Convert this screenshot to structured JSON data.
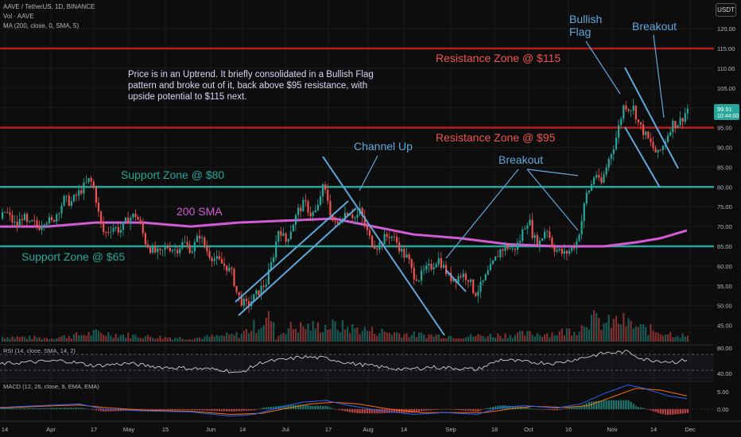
{
  "header": {
    "symbol_line": "AAVE / TetherUS, 1D, BINANCE",
    "vol_line": "Vol · AAVE",
    "ma_line": "MA (200, close, 0, SMA, 5)",
    "currency": "USDT"
  },
  "rsi_label": "RSI (14, close, SMA, 14, 2)",
  "macd_label": "MACD (12, 26, close, 9, EMA, EMA)",
  "price_badge": {
    "price": "99.91",
    "countdown": "10:44:00"
  },
  "annotations": {
    "note_line1": "Price is in an Uptrend. It briefly consolidated in a Bullish Flag",
    "note_line2": "pattern and broke out of it, back above $95 resistance, with",
    "note_line3": "upside potential to $115 next.",
    "resistance_115": "Resistance Zone @ $115",
    "resistance_95": "Resistance Zone @ $95",
    "support_80": "Support Zone @ $80",
    "support_65": "Support Zone @ $65",
    "sma_label": "200 SMA",
    "channel_up": "Channel Up",
    "breakout_1": "Breakout",
    "breakout_2": "Breakout",
    "bullish_flag_1": "Bullish",
    "bullish_flag_2": "Flag"
  },
  "colors": {
    "bull": "#26a69a",
    "bear": "#ef5350",
    "resistance": "#b71c1c",
    "support": "#26a69a",
    "sma": "#d35bd6",
    "trendline": "#5fa8dd",
    "macd": "#2962ff",
    "signal": "#ff6d00",
    "rsi": "#cfcfcf"
  },
  "chart_data": {
    "type": "candlestick",
    "symbol": "AAVE / TetherUS",
    "interval": "1D",
    "ylim": [
      40,
      125
    ],
    "y_ticks": [
      "120.00",
      "115.00",
      "110.00",
      "105.00",
      "100.00",
      "95.00",
      "90.00",
      "85.00",
      "80.00",
      "75.00",
      "70.00",
      "65.00",
      "60.00",
      "55.00",
      "50.00",
      "45.00"
    ],
    "x_ticks": [
      "14",
      "Apr",
      "17",
      "May",
      "15",
      "Jun",
      "14",
      "Jul",
      "17",
      "Aug",
      "14",
      "Sep",
      "18",
      "Oct",
      "16",
      "Nov",
      "14",
      "Dec"
    ],
    "levels": [
      {
        "label": "Resistance Zone @ $115",
        "value": 115
      },
      {
        "label": "Resistance Zone @ $95",
        "value": 95
      },
      {
        "label": "Support Zone @ $80",
        "value": 80
      },
      {
        "label": "Support Zone @ $65",
        "value": 65
      }
    ],
    "last_price": 99.91,
    "close_path": [
      [
        0,
        72
      ],
      [
        6,
        74
      ],
      [
        12,
        72
      ],
      [
        20,
        70
      ],
      [
        28,
        73
      ],
      [
        34,
        70
      ],
      [
        40,
        71
      ],
      [
        48,
        70
      ],
      [
        56,
        72
      ],
      [
        64,
        71
      ],
      [
        72,
        74
      ],
      [
        80,
        77
      ],
      [
        88,
        76
      ],
      [
        96,
        78
      ],
      [
        104,
        80
      ],
      [
        112,
        82
      ],
      [
        118,
        79
      ],
      [
        124,
        72
      ],
      [
        130,
        68
      ],
      [
        140,
        70
      ],
      [
        150,
        69
      ],
      [
        160,
        72
      ],
      [
        170,
        73
      ],
      [
        176,
        70
      ],
      [
        182,
        66
      ],
      [
        190,
        64
      ],
      [
        200,
        63
      ],
      [
        210,
        65
      ],
      [
        220,
        64
      ],
      [
        230,
        66
      ],
      [
        240,
        64
      ],
      [
        250,
        68
      ],
      [
        256,
        65
      ],
      [
        262,
        63
      ],
      [
        268,
        62
      ],
      [
        275,
        61
      ],
      [
        283,
        60
      ],
      [
        291,
        58
      ],
      [
        297,
        53
      ],
      [
        303,
        51
      ],
      [
        310,
        50
      ],
      [
        318,
        52
      ],
      [
        326,
        54
      ],
      [
        334,
        56
      ],
      [
        342,
        62
      ],
      [
        350,
        70
      ],
      [
        358,
        66
      ],
      [
        366,
        70
      ],
      [
        374,
        74
      ],
      [
        382,
        76
      ],
      [
        390,
        73
      ],
      [
        398,
        74
      ],
      [
        404,
        80
      ],
      [
        410,
        78
      ],
      [
        416,
        72
      ],
      [
        422,
        70
      ],
      [
        430,
        73
      ],
      [
        438,
        74
      ],
      [
        446,
        72
      ],
      [
        452,
        74
      ],
      [
        458,
        70
      ],
      [
        466,
        66
      ],
      [
        474,
        65
      ],
      [
        482,
        67
      ],
      [
        490,
        68
      ],
      [
        498,
        66
      ],
      [
        506,
        63
      ],
      [
        512,
        62
      ],
      [
        518,
        58
      ],
      [
        526,
        57
      ],
      [
        534,
        59
      ],
      [
        542,
        60
      ],
      [
        550,
        62
      ],
      [
        556,
        60
      ],
      [
        564,
        57
      ],
      [
        572,
        57
      ],
      [
        580,
        58
      ],
      [
        588,
        57
      ],
      [
        596,
        53
      ],
      [
        604,
        55
      ],
      [
        612,
        58
      ],
      [
        620,
        61
      ],
      [
        628,
        64
      ],
      [
        636,
        65
      ],
      [
        644,
        64
      ],
      [
        652,
        66
      ],
      [
        658,
        70
      ],
      [
        664,
        72
      ],
      [
        670,
        67
      ],
      [
        678,
        66
      ],
      [
        686,
        70
      ],
      [
        694,
        65
      ],
      [
        700,
        64
      ],
      [
        708,
        63
      ],
      [
        716,
        64
      ],
      [
        724,
        66
      ],
      [
        730,
        71
      ],
      [
        736,
        78
      ],
      [
        742,
        80
      ],
      [
        748,
        84
      ],
      [
        754,
        80
      ],
      [
        760,
        84
      ],
      [
        766,
        88
      ],
      [
        772,
        91
      ],
      [
        778,
        96
      ],
      [
        784,
        101
      ],
      [
        790,
        100
      ],
      [
        796,
        100
      ],
      [
        802,
        96
      ],
      [
        808,
        94
      ],
      [
        814,
        92
      ],
      [
        820,
        90
      ],
      [
        826,
        88
      ],
      [
        832,
        90
      ],
      [
        838,
        93
      ],
      [
        844,
        96
      ],
      [
        850,
        96
      ],
      [
        856,
        97
      ],
      [
        864,
        99.9
      ]
    ],
    "sma200_path": [
      [
        0,
        70
      ],
      [
        60,
        70
      ],
      [
        120,
        71
      ],
      [
        180,
        71
      ],
      [
        240,
        70
      ],
      [
        300,
        71
      ],
      [
        360,
        71.5
      ],
      [
        420,
        72
      ],
      [
        470,
        70
      ],
      [
        520,
        68
      ],
      [
        580,
        67
      ],
      [
        640,
        65.5
      ],
      [
        700,
        65
      ],
      [
        760,
        65
      ],
      [
        800,
        66
      ],
      [
        830,
        67
      ],
      [
        864,
        69
      ]
    ],
    "volume_path": [
      [
        0,
        3
      ],
      [
        60,
        2
      ],
      [
        120,
        5
      ],
      [
        180,
        3
      ],
      [
        240,
        2
      ],
      [
        300,
        4
      ],
      [
        340,
        14
      ],
      [
        346,
        2
      ],
      [
        360,
        8
      ],
      [
        420,
        9
      ],
      [
        470,
        6
      ],
      [
        520,
        4
      ],
      [
        580,
        3
      ],
      [
        640,
        4
      ],
      [
        700,
        5
      ],
      [
        730,
        8
      ],
      [
        736,
        14
      ],
      [
        760,
        10
      ],
      [
        780,
        12
      ],
      [
        800,
        8
      ],
      [
        864,
        3
      ]
    ],
    "rsi_ylim": [
      35,
      85
    ],
    "rsi_ticks": [
      "80.00",
      "40.00"
    ],
    "rsi_path": [
      [
        0,
        55
      ],
      [
        40,
        58
      ],
      [
        80,
        60
      ],
      [
        120,
        52
      ],
      [
        160,
        56
      ],
      [
        200,
        50
      ],
      [
        240,
        48
      ],
      [
        280,
        46
      ],
      [
        300,
        40
      ],
      [
        330,
        58
      ],
      [
        360,
        62
      ],
      [
        380,
        66
      ],
      [
        410,
        64
      ],
      [
        440,
        56
      ],
      [
        480,
        50
      ],
      [
        510,
        46
      ],
      [
        540,
        50
      ],
      [
        580,
        48
      ],
      [
        600,
        46
      ],
      [
        630,
        62
      ],
      [
        660,
        58
      ],
      [
        700,
        56
      ],
      [
        730,
        64
      ],
      [
        760,
        72
      ],
      [
        790,
        74
      ],
      [
        810,
        62
      ],
      [
        830,
        60
      ],
      [
        850,
        58
      ],
      [
        864,
        62
      ]
    ],
    "macd_ylim": [
      -3,
      8
    ],
    "macd_ticks": [
      "5.00",
      "0.00"
    ],
    "macd_path": [
      [
        0,
        0.5
      ],
      [
        50,
        1
      ],
      [
        100,
        1.5
      ],
      [
        130,
        0
      ],
      [
        180,
        -0.5
      ],
      [
        240,
        -0.8
      ],
      [
        290,
        -2
      ],
      [
        320,
        -1.5
      ],
      [
        360,
        1
      ],
      [
        380,
        2
      ],
      [
        410,
        2.5
      ],
      [
        440,
        1
      ],
      [
        480,
        -0.5
      ],
      [
        520,
        -1.5
      ],
      [
        560,
        -1
      ],
      [
        600,
        -1.5
      ],
      [
        630,
        0.5
      ],
      [
        660,
        1
      ],
      [
        700,
        0.3
      ],
      [
        730,
        1.5
      ],
      [
        760,
        4.5
      ],
      [
        790,
        7
      ],
      [
        810,
        6
      ],
      [
        840,
        3.8
      ],
      [
        864,
        3
      ]
    ],
    "signal_path": [
      [
        0,
        0.3
      ],
      [
        50,
        0.8
      ],
      [
        100,
        1.2
      ],
      [
        130,
        0.5
      ],
      [
        180,
        -0.3
      ],
      [
        240,
        -0.6
      ],
      [
        290,
        -1.5
      ],
      [
        330,
        -1.2
      ],
      [
        360,
        0.2
      ],
      [
        390,
        1.5
      ],
      [
        420,
        2
      ],
      [
        450,
        1.5
      ],
      [
        490,
        0
      ],
      [
        530,
        -1
      ],
      [
        570,
        -1
      ],
      [
        610,
        -1
      ],
      [
        640,
        0
      ],
      [
        670,
        0.8
      ],
      [
        710,
        0.5
      ],
      [
        740,
        1
      ],
      [
        770,
        3.5
      ],
      [
        800,
        6
      ],
      [
        830,
        5.5
      ],
      [
        864,
        3.8
      ]
    ]
  }
}
